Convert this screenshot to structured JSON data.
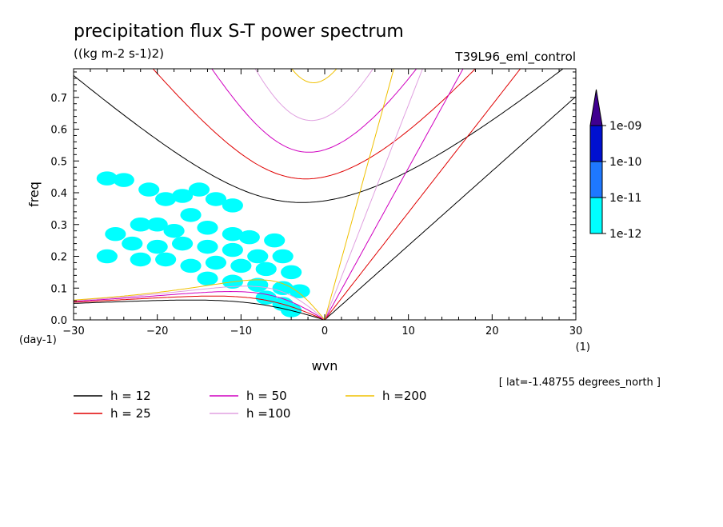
{
  "header": {
    "title": "precipitation flux S-T power spectrum",
    "units": "((kg m-2 s-1)2)",
    "run": "T39L96_eml_control"
  },
  "footer": {
    "latitude_note": "[ lat=-1.48755 degrees_north ]"
  },
  "chart_data": {
    "type": "heatmap",
    "title": "precipitation flux S-T power spectrum",
    "xlabel": "wvn",
    "ylabel": "freq",
    "x_unit": "(1)",
    "y_unit": "(day-1)",
    "xlim": [
      -30,
      30
    ],
    "ylim": [
      0,
      0.79
    ],
    "xticks": [
      -30,
      -20,
      -10,
      0,
      10,
      20,
      30
    ],
    "xtick_labels": [
      "−30",
      "−20",
      "−10",
      "0",
      "10",
      "20",
      "30"
    ],
    "yticks": [
      0,
      0.1,
      0.2,
      0.3,
      0.4,
      0.5,
      0.6,
      0.7
    ],
    "ytick_labels": [
      "0.0",
      "0.1",
      "0.2",
      "0.3",
      "0.4",
      "0.5",
      "0.6",
      "0.7"
    ],
    "grid": false,
    "colorbar": {
      "levels": [
        "1e-12",
        "1e-11",
        "1e-10",
        "1e-09"
      ],
      "colors": [
        "#00ffff",
        "#1e78ff",
        "#0010d0",
        "#400090"
      ]
    },
    "dispersion_curves": [
      {
        "label": "h = 12",
        "h": 12,
        "color": "#000000"
      },
      {
        "label": "h = 25",
        "h": 25,
        "color": "#e00000"
      },
      {
        "label": "h = 50",
        "h": 50,
        "color": "#d000c0"
      },
      {
        "label": "h =100",
        "h": 100,
        "color": "#e0a0e0"
      },
      {
        "label": "h =200",
        "h": 200,
        "color": "#f0c000"
      }
    ],
    "shaded_region": {
      "level": "1e-12",
      "color": "#00ffff",
      "blobs": [
        {
          "x": -26,
          "y": 0.445
        },
        {
          "x": -24,
          "y": 0.44
        },
        {
          "x": -21,
          "y": 0.41
        },
        {
          "x": -19,
          "y": 0.38
        },
        {
          "x": -17,
          "y": 0.39
        },
        {
          "x": -15,
          "y": 0.41
        },
        {
          "x": -13,
          "y": 0.38
        },
        {
          "x": -11,
          "y": 0.36
        },
        {
          "x": -16,
          "y": 0.33
        },
        {
          "x": -20,
          "y": 0.3
        },
        {
          "x": -22,
          "y": 0.3
        },
        {
          "x": -18,
          "y": 0.28
        },
        {
          "x": -14,
          "y": 0.29
        },
        {
          "x": -11,
          "y": 0.27
        },
        {
          "x": -9,
          "y": 0.26
        },
        {
          "x": -6,
          "y": 0.25
        },
        {
          "x": -25,
          "y": 0.27
        },
        {
          "x": -23,
          "y": 0.24
        },
        {
          "x": -20,
          "y": 0.23
        },
        {
          "x": -17,
          "y": 0.24
        },
        {
          "x": -14,
          "y": 0.23
        },
        {
          "x": -11,
          "y": 0.22
        },
        {
          "x": -8,
          "y": 0.2
        },
        {
          "x": -5,
          "y": 0.2
        },
        {
          "x": -26,
          "y": 0.2
        },
        {
          "x": -22,
          "y": 0.19
        },
        {
          "x": -19,
          "y": 0.19
        },
        {
          "x": -16,
          "y": 0.17
        },
        {
          "x": -13,
          "y": 0.18
        },
        {
          "x": -10,
          "y": 0.17
        },
        {
          "x": -7,
          "y": 0.16
        },
        {
          "x": -4,
          "y": 0.15
        },
        {
          "x": -14,
          "y": 0.13
        },
        {
          "x": -11,
          "y": 0.12
        },
        {
          "x": -8,
          "y": 0.11
        },
        {
          "x": -5,
          "y": 0.1
        },
        {
          "x": -3,
          "y": 0.09
        },
        {
          "x": -7,
          "y": 0.07
        },
        {
          "x": -5,
          "y": 0.05
        },
        {
          "x": -4,
          "y": 0.03
        }
      ]
    }
  }
}
